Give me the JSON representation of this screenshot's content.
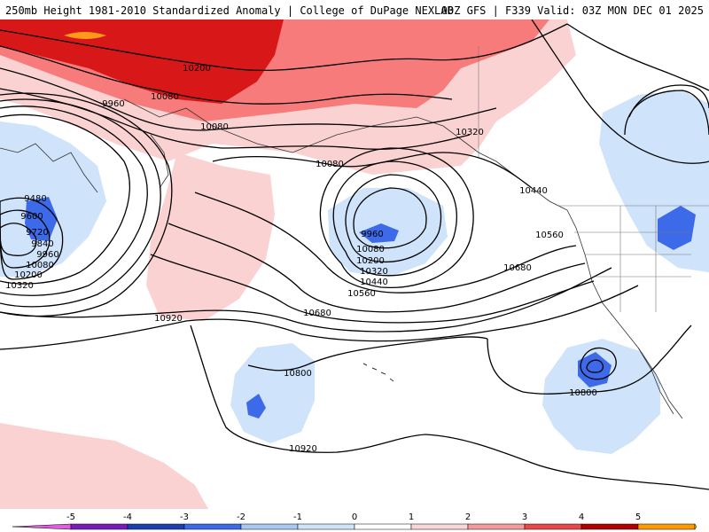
{
  "header": {
    "title_left": "250mb Height 1981-2010 Standardized Anomaly | College of DuPage NEXLAB",
    "title_right": "00Z GFS | F339 Valid: 03Z MON DEC 01 2025"
  },
  "contour_labels": [
    "10200",
    "10080",
    "9960",
    "10080",
    "10080",
    "10320",
    "9480",
    "9600",
    "9720",
    "9840",
    "9960",
    "10080",
    "10200",
    "10320",
    "9960",
    "10080",
    "10200",
    "10320",
    "10440",
    "10560",
    "10440",
    "10560",
    "10680",
    "10680",
    "10920",
    "10800",
    "10920",
    "10800"
  ],
  "legend": {
    "ticks": [
      "-5",
      "-4",
      "-3",
      "-2",
      "-1",
      "0",
      "1",
      "2",
      "3",
      "4",
      "5"
    ],
    "colors": [
      "#e05ce0",
      "#7a1ab8",
      "#1c3fb0",
      "#3c6ae8",
      "#a9c8f2",
      "#cfe3fb",
      "#ffffff",
      "#fbd6d6",
      "#f49a9a",
      "#e84848",
      "#b00000",
      "#ff9900",
      "#ffd000"
    ]
  },
  "anomaly_colors": {
    "weak_pos": "#fbd2d2",
    "pos": "#f77b7b",
    "strong_pos": "#d81818",
    "extreme_pos": "#ff9a1a",
    "weak_neg": "#cfe3fb",
    "neg": "#3c6ae8"
  }
}
